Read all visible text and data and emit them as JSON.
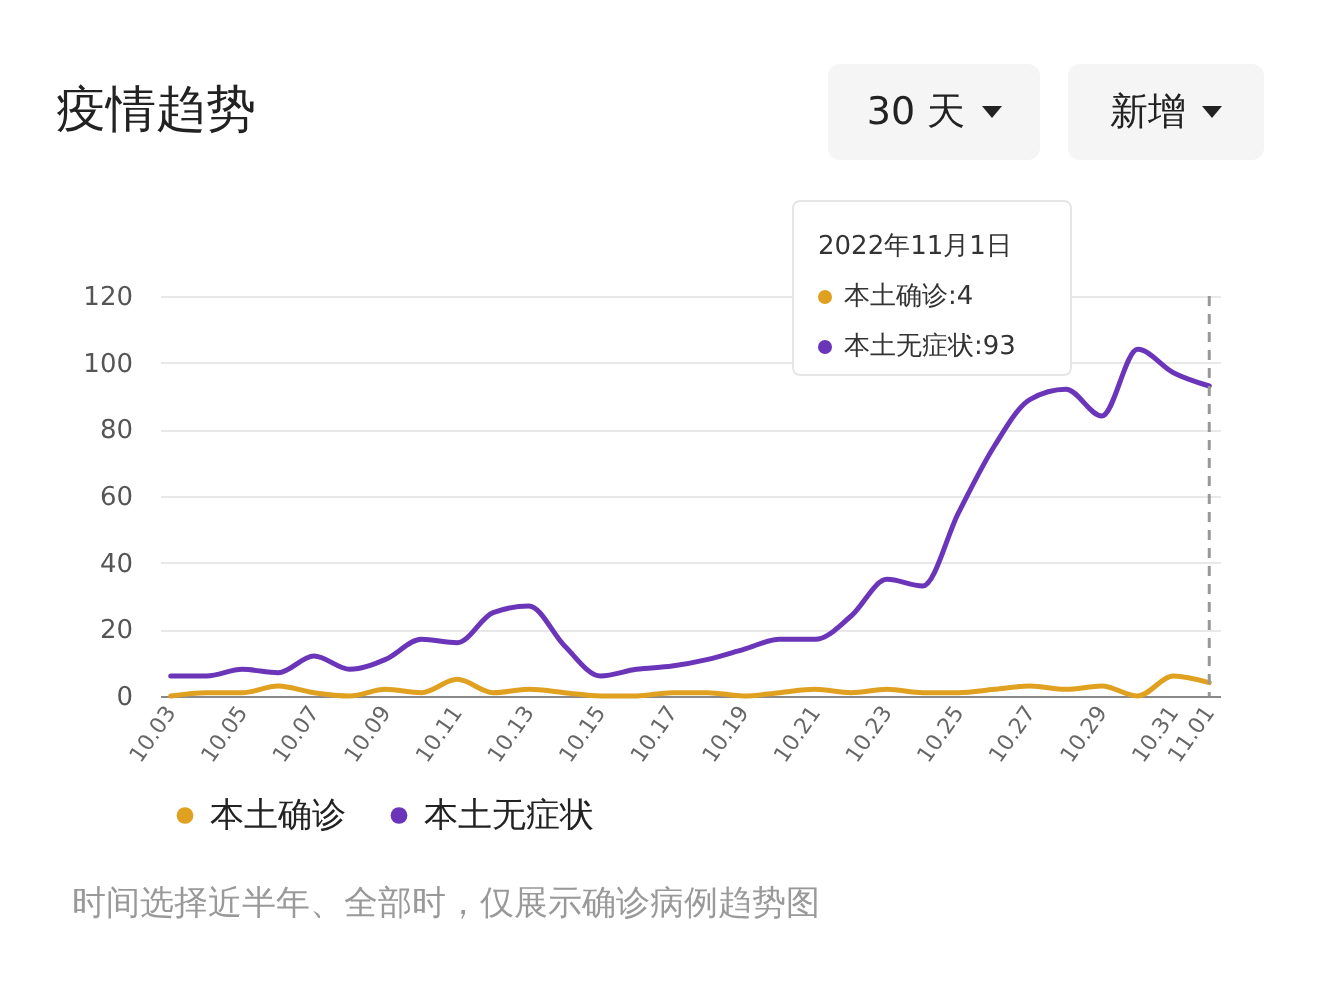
{
  "chart_data": {
    "type": "line",
    "title": "疫情趋势",
    "categories": [
      "10.03",
      null,
      "10.05",
      null,
      "10.07",
      null,
      "10.09",
      null,
      "10.11",
      null,
      "10.13",
      null,
      "10.15",
      null,
      "10.17",
      null,
      "10.19",
      null,
      "10.21",
      null,
      "10.23",
      null,
      "10.25",
      null,
      "10.27",
      null,
      "10.29",
      null,
      "10.31",
      "11.01"
    ],
    "series": [
      {
        "name": "本土确诊",
        "color": "#e0a020",
        "values": [
          0,
          1,
          1,
          3,
          1,
          0,
          2,
          1,
          5,
          1,
          2,
          1,
          0,
          0,
          1,
          1,
          0,
          1,
          2,
          1,
          2,
          1,
          1,
          2,
          3,
          2,
          3,
          0,
          6,
          4
        ]
      },
      {
        "name": "本土无症状",
        "color": "#6a35b8",
        "values": [
          6,
          6,
          8,
          7,
          12,
          8,
          11,
          17,
          16,
          25,
          27,
          15,
          6,
          8,
          9,
          11,
          14,
          17,
          17,
          24,
          35,
          33,
          55,
          75,
          89,
          92,
          84,
          104,
          97,
          93
        ]
      }
    ],
    "ylim": [
      0,
      120
    ],
    "yticks": [
      0,
      20,
      40,
      60,
      80,
      100,
      120
    ],
    "grid": "y",
    "legend": "bottom",
    "marker": "none",
    "ref_lines": [
      {
        "axis": "x",
        "value": "11.01",
        "color": "#999999",
        "line_style": "dashed"
      }
    ],
    "annotations": [
      "2022年11月1日",
      "本土确诊:4",
      "本土无症状:93",
      "30 天",
      "新增",
      "时间选择近半年、全部时，仅展示确诊病例趋势图"
    ]
  }
}
